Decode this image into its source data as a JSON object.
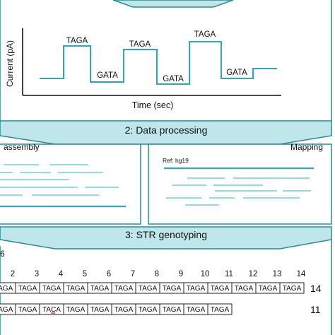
{
  "colors": {
    "teal_fill": "#bfe6ea",
    "teal_border": "#2b8c93",
    "signal": "#2fa8b0",
    "read_line": "#79cdd3",
    "contig": "#3aa6ae",
    "box_border": "#222222"
  },
  "step1": {
    "y_axis_label": "Current (pA)",
    "x_axis_label": "Time (sec)",
    "signal_labels": [
      "TAGA",
      "GATA",
      "TAGA",
      "GATA",
      "TAGA",
      "GATA"
    ]
  },
  "step2": {
    "header": "2: Data processing",
    "left_title": "assembly",
    "right_title": "Mapping",
    "ref_label": "Ref: hg19"
  },
  "step3": {
    "header": "3: STR genotyping",
    "partial_label": "6",
    "index_numbers": [
      "2",
      "3",
      "4",
      "5",
      "6",
      "7",
      "8",
      "9",
      "10",
      "11",
      "12",
      "13",
      "14"
    ],
    "row1": {
      "cells": [
        "TAGA",
        "TAGA",
        "TAGA",
        "TAGA",
        "TAGA",
        "TAGA",
        "TAGA",
        "TAGA",
        "TAGA",
        "TAGA",
        "TAGA",
        "TAGA",
        "TAGA"
      ],
      "count": "14"
    },
    "row2": {
      "cells": [
        "TAGA",
        "TAGA",
        "TACA",
        "TAGA",
        "TAGA",
        "TAGA",
        "TAGA",
        "TAGA",
        "TAGA",
        "TAGA"
      ],
      "count": "11"
    }
  }
}
